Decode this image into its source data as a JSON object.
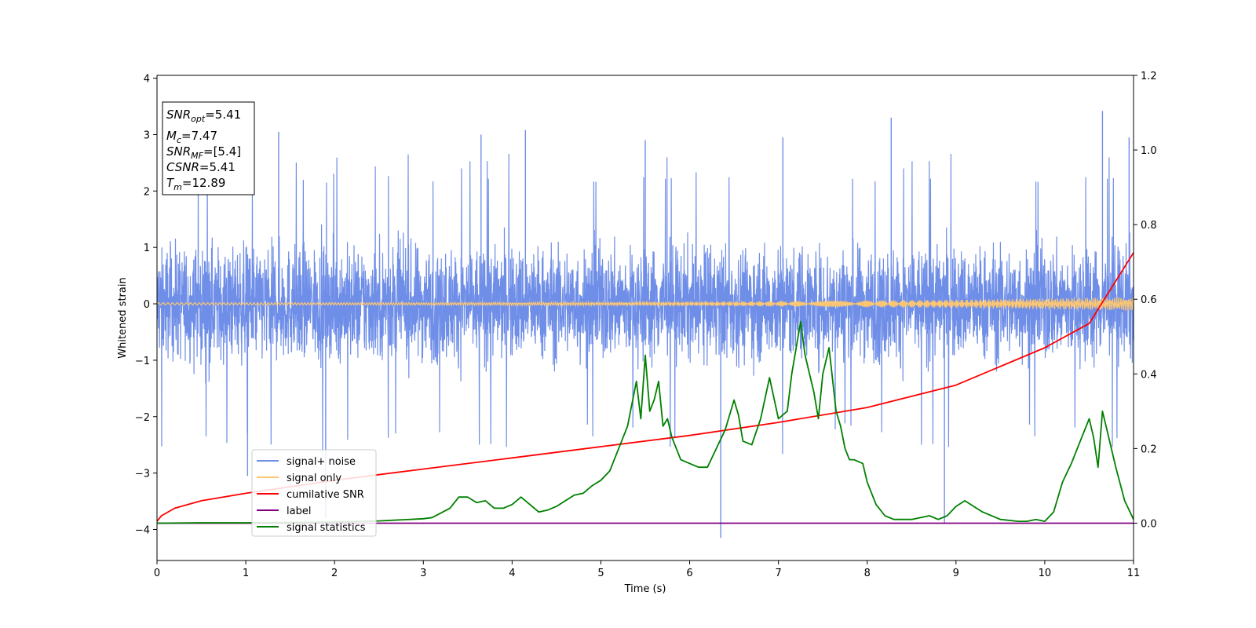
{
  "chart_data": {
    "type": "line",
    "xlabel": "Time (s)",
    "ylabel_left": "Whitened strain",
    "ylabel_right": "",
    "xlim": [
      0,
      11
    ],
    "ylim_left": [
      -4.55,
      4.05
    ],
    "ylim_right": [
      -0.1,
      1.2
    ],
    "x_ticks": [
      0,
      1,
      2,
      3,
      4,
      5,
      6,
      7,
      8,
      9,
      10,
      11
    ],
    "y_ticks_left": [
      -4,
      -3,
      -2,
      -1,
      0,
      1,
      2,
      3,
      4
    ],
    "y_ticks_right": [
      0.0,
      0.2,
      0.4,
      0.6,
      0.8,
      1.0,
      1.2
    ],
    "x_tick_labels": [
      "0",
      "1",
      "2",
      "3",
      "4",
      "5",
      "6",
      "7",
      "8",
      "9",
      "10",
      "11"
    ],
    "y_tick_labels_left": [
      "−4",
      "−3",
      "−2",
      "−1",
      "0",
      "1",
      "2",
      "3",
      "4"
    ],
    "y_tick_labels_right": [
      "0.0",
      "0.2",
      "0.4",
      "0.6",
      "0.8",
      "1.0",
      "1.2"
    ],
    "grid": false,
    "legend_position": "lower-left",
    "info_box": {
      "snr_opt": {
        "base": "SNR",
        "sub": "opt",
        "value": "=5.41"
      },
      "mc": {
        "base": "M",
        "sub": "c",
        "value": "=7.47"
      },
      "snr_mf": {
        "base": "SNR",
        "sub": "MF",
        "value": "=[5.4]"
      },
      "csnr": {
        "base": "CSNR",
        "value": "=5.41"
      },
      "tm": {
        "base": "T",
        "sub": "m",
        "value": "=12.89"
      }
    },
    "series": [
      {
        "name": "signal+ noise",
        "axis": "left",
        "color": "#6f8ee8",
        "description_only": "dense noise band, approx amplitude ±1.3 with spikes to about ±3",
        "noise_amplitude": 1.25,
        "spikes": [
          {
            "x": 1.37,
            "y": 3.05
          },
          {
            "x": 4.15,
            "y": 3.08
          },
          {
            "x": 8.27,
            "y": 3.3
          },
          {
            "x": 10.65,
            "y": 3.42
          },
          {
            "x": 1.02,
            "y": -3.05
          },
          {
            "x": 1.9,
            "y": -3.8
          },
          {
            "x": 6.35,
            "y": -4.15
          },
          {
            "x": 8.87,
            "y": -3.9
          },
          {
            "x": 3.65,
            "y": 3.0
          },
          {
            "x": 5.5,
            "y": 2.9
          },
          {
            "x": 7.05,
            "y": 2.95
          },
          {
            "x": 10.95,
            "y": 2.95
          }
        ]
      },
      {
        "name": "signal only",
        "axis": "left",
        "color": "#ffc870",
        "amplitude_start": 0.02,
        "amplitude_end": 0.12
      },
      {
        "name": "cumilative SNR",
        "axis": "right",
        "color": "#ff0000",
        "x": [
          0,
          0.05,
          0.2,
          0.5,
          1,
          2,
          3,
          4,
          5,
          6,
          7,
          8,
          9,
          10,
          10.5,
          11
        ],
        "values": [
          0.005,
          0.02,
          0.04,
          0.06,
          0.08,
          0.115,
          0.145,
          0.175,
          0.205,
          0.235,
          0.27,
          0.31,
          0.37,
          0.47,
          0.535,
          0.725
        ]
      },
      {
        "name": "label",
        "axis": "right",
        "color": "#800080",
        "x": [
          0,
          11
        ],
        "values": [
          0.0,
          0.0
        ]
      },
      {
        "name": "signal statistics",
        "axis": "right",
        "color": "#008000",
        "x": [
          0,
          0.5,
          1,
          1.5,
          2,
          2.5,
          3,
          3.1,
          3.3,
          3.4,
          3.5,
          3.6,
          3.7,
          3.8,
          3.9,
          4.0,
          4.1,
          4.2,
          4.3,
          4.4,
          4.5,
          4.6,
          4.7,
          4.8,
          4.9,
          5.0,
          5.1,
          5.2,
          5.3,
          5.4,
          5.45,
          5.5,
          5.55,
          5.6,
          5.65,
          5.7,
          5.75,
          5.8,
          5.9,
          6.0,
          6.1,
          6.2,
          6.3,
          6.4,
          6.5,
          6.55,
          6.6,
          6.7,
          6.8,
          6.9,
          7.0,
          7.1,
          7.15,
          7.25,
          7.3,
          7.4,
          7.45,
          7.5,
          7.57,
          7.65,
          7.7,
          7.75,
          7.8,
          7.85,
          7.95,
          8.0,
          8.1,
          8.2,
          8.3,
          8.5,
          8.7,
          8.8,
          8.9,
          9.0,
          9.1,
          9.2,
          9.3,
          9.5,
          9.7,
          9.8,
          9.9,
          10.0,
          10.1,
          10.2,
          10.3,
          10.4,
          10.5,
          10.55,
          10.6,
          10.65,
          10.7,
          10.8,
          10.9,
          11.0
        ],
        "values": [
          0.0,
          0.001,
          0.001,
          0.002,
          0.003,
          0.006,
          0.012,
          0.015,
          0.04,
          0.07,
          0.07,
          0.055,
          0.06,
          0.04,
          0.04,
          0.05,
          0.07,
          0.05,
          0.03,
          0.035,
          0.045,
          0.06,
          0.075,
          0.08,
          0.1,
          0.115,
          0.14,
          0.2,
          0.26,
          0.38,
          0.28,
          0.45,
          0.3,
          0.33,
          0.38,
          0.26,
          0.28,
          0.23,
          0.17,
          0.16,
          0.15,
          0.15,
          0.2,
          0.25,
          0.33,
          0.29,
          0.22,
          0.21,
          0.28,
          0.39,
          0.28,
          0.3,
          0.4,
          0.54,
          0.45,
          0.35,
          0.28,
          0.4,
          0.47,
          0.3,
          0.26,
          0.2,
          0.17,
          0.17,
          0.16,
          0.11,
          0.05,
          0.02,
          0.01,
          0.01,
          0.02,
          0.01,
          0.02,
          0.045,
          0.06,
          0.045,
          0.03,
          0.01,
          0.005,
          0.005,
          0.01,
          0.005,
          0.03,
          0.11,
          0.16,
          0.22,
          0.28,
          0.23,
          0.15,
          0.3,
          0.25,
          0.15,
          0.06,
          0.01
        ]
      }
    ],
    "legend_entries": [
      {
        "label": "signal+ noise",
        "color": "#6f8ee8"
      },
      {
        "label": "signal only",
        "color": "#ffc870"
      },
      {
        "label": "cumilative SNR",
        "color": "#ff0000"
      },
      {
        "label": "label",
        "color": "#800080"
      },
      {
        "label": "signal statistics",
        "color": "#008000"
      }
    ]
  }
}
